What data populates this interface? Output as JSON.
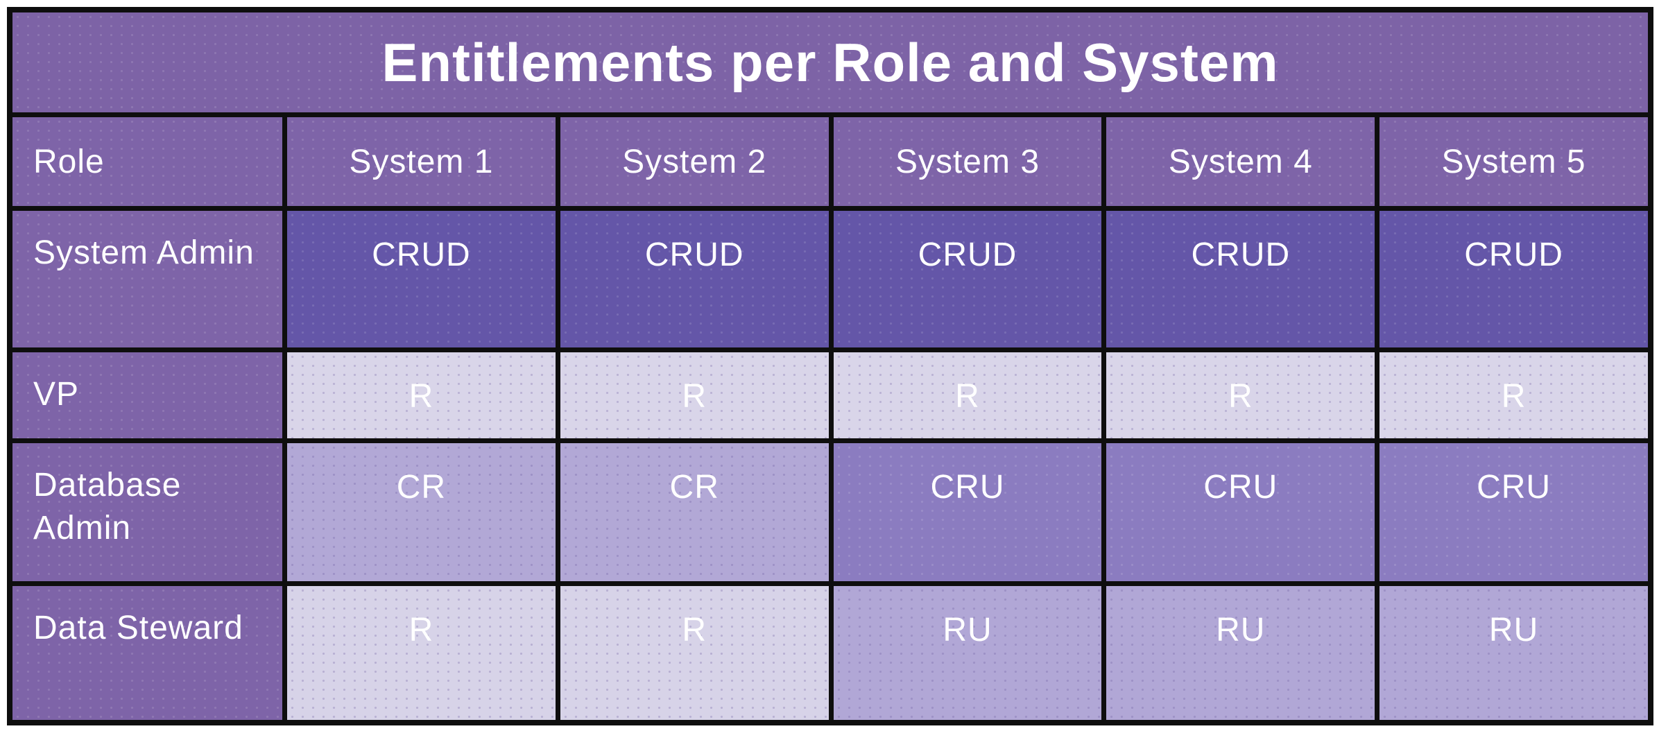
{
  "title": "Entitlements per Role and System",
  "columns": {
    "role": "Role",
    "systems": [
      "System 1",
      "System 2",
      "System 3",
      "System 4",
      "System 5"
    ]
  },
  "rows": [
    {
      "role": "System Admin",
      "cells": [
        "CRUD",
        "CRUD",
        "CRUD",
        "CRUD",
        "CRUD"
      ]
    },
    {
      "role": "VP",
      "cells": [
        "R",
        "R",
        "R",
        "R",
        "R"
      ]
    },
    {
      "role": "Database Admin",
      "cells": [
        "CR",
        "CR",
        "CRU",
        "CRU",
        "CRU"
      ]
    },
    {
      "role": "Data Steward",
      "cells": [
        "R",
        "R",
        "RU",
        "RU",
        "RU"
      ]
    }
  ],
  "colors": {
    "page_bg": "#ffffff",
    "grid_border": "#0e0e0e",
    "text": "#ffffff",
    "title_bg": "#7d63a6",
    "header_bg": "#7e64a8",
    "row_label_bg": "#7e64a8",
    "cells": [
      [
        "#6456a8",
        "#6456a8",
        "#6456a8",
        "#6456a8",
        "#6456a8"
      ],
      [
        "#d9d5e9",
        "#d9d5e9",
        "#d9d5e9",
        "#d9d5e9",
        "#d9d5e9"
      ],
      [
        "#b2a8d6",
        "#b2a8d6",
        "#8b7cc0",
        "#8b7cc0",
        "#8b7cc0"
      ],
      [
        "#d7d3e8",
        "#d7d3e8",
        "#b1a7d6",
        "#b1a7d6",
        "#b1a7d6"
      ]
    ]
  }
}
